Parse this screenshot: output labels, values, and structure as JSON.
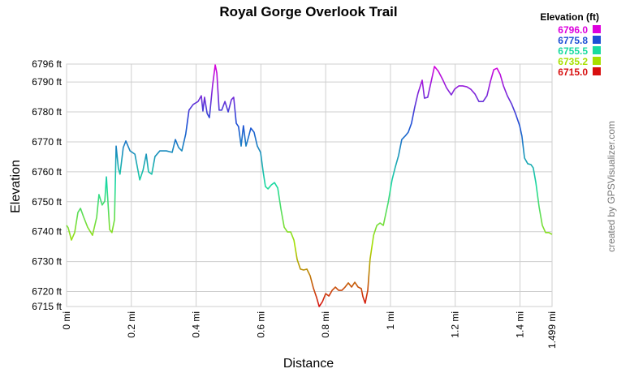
{
  "chart_data": {
    "type": "line",
    "title": "Royal Gorge Overlook Trail",
    "x_label": "Distance",
    "y_label": "Elevation",
    "credit": "created by GPSVisualizer.com",
    "legend_title": "Elevation (ft)",
    "color_scale": [
      {
        "value": 6796.0,
        "label": "6796.0",
        "color": "#dd00dd"
      },
      {
        "value": 6775.8,
        "label": "6775.8",
        "color": "#1c4fd6"
      },
      {
        "value": 6755.5,
        "label": "6755.5",
        "color": "#19dba0"
      },
      {
        "value": 6735.2,
        "label": "6735.2",
        "color": "#a8e000"
      },
      {
        "value": 6715.0,
        "label": "6715.0",
        "color": "#d81010"
      }
    ],
    "grid": true,
    "xlim": [
      0,
      1.499
    ],
    "ylim": [
      6715,
      6796
    ],
    "xticks": [
      {
        "value": 0,
        "label": "0 mi"
      },
      {
        "value": 0.2,
        "label": "0.2 mi"
      },
      {
        "value": 0.4,
        "label": "0.4 mi"
      },
      {
        "value": 0.6,
        "label": "0.6 mi"
      },
      {
        "value": 0.8,
        "label": "0.8 mi"
      },
      {
        "value": 1,
        "label": "1 mi"
      },
      {
        "value": 1.2,
        "label": "1.2 mi"
      },
      {
        "value": 1.4,
        "label": "1.4 mi"
      },
      {
        "value": 1.499,
        "label": "1.499 mi"
      }
    ],
    "yticks": [
      {
        "value": 6715,
        "label": "6715 ft"
      },
      {
        "value": 6720,
        "label": "6720 ft"
      },
      {
        "value": 6730,
        "label": "6730 ft"
      },
      {
        "value": 6740,
        "label": "6740 ft"
      },
      {
        "value": 6750,
        "label": "6750 ft"
      },
      {
        "value": 6760,
        "label": "6760 ft"
      },
      {
        "value": 6770,
        "label": "6770 ft"
      },
      {
        "value": 6780,
        "label": "6780 ft"
      },
      {
        "value": 6790,
        "label": "6790 ft"
      },
      {
        "value": 6796,
        "label": "6796 ft"
      }
    ],
    "x": [
      0,
      0.005,
      0.015,
      0.025,
      0.035,
      0.043,
      0.053,
      0.065,
      0.08,
      0.093,
      0.1,
      0.11,
      0.118,
      0.123,
      0.133,
      0.14,
      0.148,
      0.153,
      0.16,
      0.165,
      0.175,
      0.183,
      0.196,
      0.211,
      0.226,
      0.236,
      0.246,
      0.253,
      0.263,
      0.273,
      0.288,
      0.308,
      0.326,
      0.336,
      0.346,
      0.356,
      0.368,
      0.378,
      0.391,
      0.406,
      0.416,
      0.421,
      0.426,
      0.434,
      0.441,
      0.451,
      0.459,
      0.464,
      0.471,
      0.479,
      0.489,
      0.499,
      0.509,
      0.516,
      0.524,
      0.531,
      0.539,
      0.546,
      0.554,
      0.561,
      0.569,
      0.579,
      0.589,
      0.599,
      0.607,
      0.614,
      0.622,
      0.632,
      0.642,
      0.652,
      0.662,
      0.672,
      0.682,
      0.692,
      0.702,
      0.712,
      0.722,
      0.732,
      0.742,
      0.752,
      0.762,
      0.772,
      0.78,
      0.79,
      0.8,
      0.81,
      0.82,
      0.83,
      0.84,
      0.85,
      0.86,
      0.87,
      0.88,
      0.89,
      0.9,
      0.91,
      0.915,
      0.922,
      0.93,
      0.937,
      0.948,
      0.958,
      0.968,
      0.978,
      0.993,
      1.005,
      1.015,
      1.025,
      1.035,
      1.045,
      1.055,
      1.065,
      1.075,
      1.085,
      1.098,
      1.105,
      1.115,
      1.126,
      1.136,
      1.148,
      1.161,
      1.173,
      1.188,
      1.198,
      1.211,
      1.223,
      1.236,
      1.248,
      1.261,
      1.273,
      1.286,
      1.298,
      1.309,
      1.319,
      1.329,
      1.339,
      1.349,
      1.361,
      1.374,
      1.386,
      1.399,
      1.406,
      1.414,
      1.424,
      1.434,
      1.441,
      1.449,
      1.459,
      1.469,
      1.479,
      1.489,
      1.499
    ],
    "values": [
      6742.1,
      6741.3,
      6737.2,
      6739.7,
      6746.4,
      6747.8,
      6744.8,
      6741.5,
      6738.8,
      6744.8,
      6752.4,
      6748.9,
      6750.2,
      6758.3,
      6740.7,
      6739.7,
      6744.0,
      6768.6,
      6761.1,
      6759.2,
      6768.1,
      6770.3,
      6767.0,
      6765.9,
      6757.3,
      6760.5,
      6765.9,
      6760.0,
      6759.2,
      6765.1,
      6767.0,
      6767.0,
      6766.5,
      6770.8,
      6768.1,
      6767.0,
      6772.7,
      6780.6,
      6782.5,
      6783.5,
      6785.4,
      6780.3,
      6784.9,
      6779.5,
      6778.1,
      6789.0,
      6795.7,
      6793.0,
      6780.6,
      6780.6,
      6783.5,
      6780.0,
      6784.1,
      6784.9,
      6776.2,
      6775.1,
      6768.6,
      6775.4,
      6768.6,
      6771.3,
      6774.6,
      6773.2,
      6768.6,
      6766.5,
      6760.0,
      6755.1,
      6754.3,
      6755.6,
      6756.4,
      6754.6,
      6747.5,
      6741.5,
      6739.9,
      6739.9,
      6737.2,
      6730.7,
      6727.5,
      6727.2,
      6727.5,
      6725.3,
      6721.2,
      6718.0,
      6715.0,
      6716.6,
      6719.3,
      6718.5,
      6720.4,
      6721.5,
      6720.4,
      6720.4,
      6721.5,
      6722.9,
      6721.5,
      6723.1,
      6721.5,
      6721.0,
      6718.3,
      6716.1,
      6720.4,
      6730.7,
      6738.8,
      6742.1,
      6742.9,
      6742.1,
      6749.7,
      6757.3,
      6761.6,
      6765.4,
      6770.8,
      6771.9,
      6773.2,
      6776.2,
      6781.6,
      6786.2,
      6790.6,
      6784.6,
      6784.9,
      6790.3,
      6795.2,
      6793.6,
      6790.9,
      6788.1,
      6785.7,
      6787.6,
      6788.7,
      6788.7,
      6788.4,
      6787.6,
      6786.0,
      6783.5,
      6783.5,
      6785.4,
      6790.3,
      6794.1,
      6794.6,
      6792.5,
      6788.7,
      6785.4,
      6782.7,
      6779.5,
      6775.4,
      6771.9,
      6764.6,
      6762.7,
      6762.4,
      6761.3,
      6756.4,
      6748.3,
      6742.1,
      6739.7,
      6739.7,
      6739.1
    ]
  }
}
